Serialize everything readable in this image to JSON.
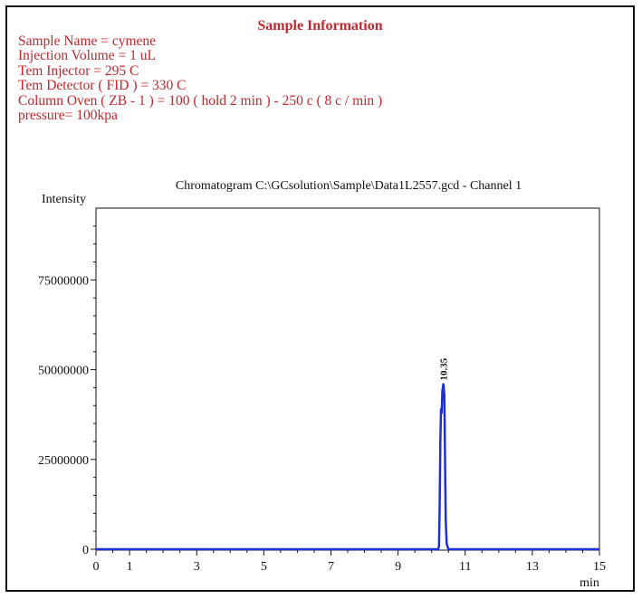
{
  "sample_info": {
    "title": "Sample Information",
    "lines": [
      "Sample Name = cymene",
      "Injection Volume = 1 uL",
      "Tem Injector = 295 C",
      "Tem Detector (  FID ) =  330 C",
      "Column Oven ( ZB - 1 ) = 100 ( hold 2 min ) - 250 c ( 8 c / min )",
      "pressure= 100kpa"
    ]
  },
  "colors": {
    "info_text": "#c0282d",
    "trace": "#1f2fd6",
    "axis": "#111111"
  },
  "chart_data": {
    "type": "line",
    "title": "Chromatogram C:\\GCsolution\\Sample\\Data1L2557.gcd - Channel 1",
    "xlabel": "min",
    "ylabel": "Intensity",
    "xlim": [
      0,
      15
    ],
    "ylim": [
      -1000000,
      95000000
    ],
    "x_ticks": [
      0,
      1,
      3,
      5,
      7,
      9,
      11,
      13,
      15
    ],
    "y_ticks": [
      0,
      25000000,
      50000000,
      75000000
    ],
    "y_tick_labels": [
      "0",
      "25000000",
      "50000000",
      "75000000"
    ],
    "grid": false,
    "series": [
      {
        "x": [
          0,
          10.0,
          10.2,
          10.22,
          10.24,
          10.26,
          10.28,
          10.3,
          10.32,
          10.35,
          10.38,
          10.4,
          10.42,
          10.45,
          10.5,
          11.0,
          15
        ],
        "y": [
          0,
          0,
          0,
          1000000,
          12000000,
          30000000,
          39000000,
          38000000,
          44000000,
          46000000,
          43000000,
          25000000,
          8000000,
          1500000,
          0,
          0,
          0
        ]
      }
    ],
    "peaks": [
      {
        "x": 10.35,
        "y": 46000000,
        "label": "10.35"
      }
    ]
  }
}
